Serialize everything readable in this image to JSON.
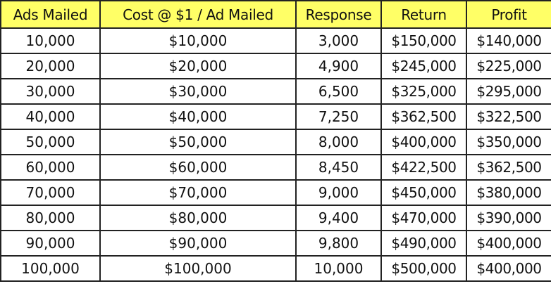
{
  "colors": {
    "header_bg": "#ffff66",
    "grid": "#222222",
    "text": "#111111",
    "cell_bg": "#ffffff"
  },
  "table": {
    "headers": [
      "Ads Mailed",
      "Cost @ $1 / Ad Mailed",
      "Response",
      "Return",
      "Profit"
    ],
    "rows": [
      [
        "10,000",
        "$10,000",
        "3,000",
        "$150,000",
        "$140,000"
      ],
      [
        "20,000",
        "$20,000",
        "4,900",
        "$245,000",
        "$225,000"
      ],
      [
        "30,000",
        "$30,000",
        "6,500",
        "$325,000",
        "$295,000"
      ],
      [
        "40,000",
        "$40,000",
        "7,250",
        "$362,500",
        "$322,500"
      ],
      [
        "50,000",
        "$50,000",
        "8,000",
        "$400,000",
        "$350,000"
      ],
      [
        "60,000",
        "$60,000",
        "8,450",
        "$422,500",
        "$362,500"
      ],
      [
        "70,000",
        "$70,000",
        "9,000",
        "$450,000",
        "$380,000"
      ],
      [
        "80,000",
        "$80,000",
        "9,400",
        "$470,000",
        "$390,000"
      ],
      [
        "90,000",
        "$90,000",
        "9,800",
        "$490,000",
        "$400,000"
      ],
      [
        "100,000",
        "$100,000",
        "10,000",
        "$500,000",
        "$400,000"
      ]
    ]
  }
}
